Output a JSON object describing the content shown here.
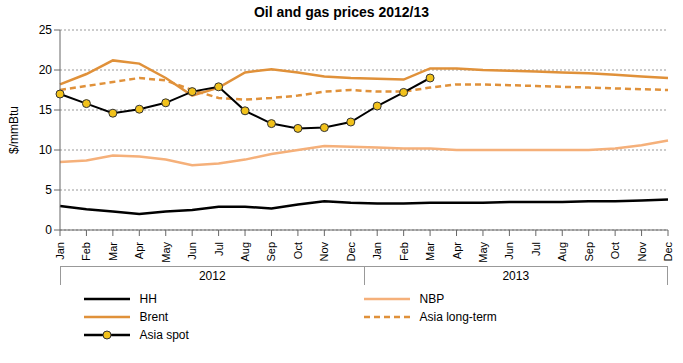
{
  "chart_data": {
    "type": "line",
    "title": "Oil and gas prices 2012/13",
    "y_label": "$/mmBtu",
    "categories": [
      "Jan",
      "Feb",
      "Mar",
      "Apr",
      "May",
      "Jun",
      "Jul",
      "Aug",
      "Sep",
      "Oct",
      "Nov",
      "Dec",
      "Jan",
      "Feb",
      "Mar",
      "Apr",
      "May",
      "Jun",
      "Jul",
      "Aug",
      "Sep",
      "Oct",
      "Nov",
      "Dec"
    ],
    "category_groups": [
      "2012",
      "2013"
    ],
    "ylim": [
      0,
      25
    ],
    "yticks": [
      0,
      5,
      10,
      15,
      20,
      25
    ],
    "grid": true,
    "legend": "bottom",
    "series": [
      {
        "name": "HH",
        "color": "#000000",
        "line_style": "solid",
        "values": [
          3.0,
          2.6,
          2.3,
          2.0,
          2.3,
          2.5,
          2.9,
          2.9,
          2.7,
          3.2,
          3.6,
          3.4,
          3.3,
          3.3,
          3.4,
          3.4,
          3.4,
          3.5,
          3.5,
          3.5,
          3.6,
          3.6,
          3.7,
          3.8
        ]
      },
      {
        "name": "NBP",
        "color": "#f5b07a",
        "line_style": "solid",
        "values": [
          8.5,
          8.7,
          9.3,
          9.2,
          8.8,
          8.1,
          8.3,
          8.8,
          9.5,
          10.0,
          10.5,
          10.4,
          10.3,
          10.2,
          10.2,
          10.0,
          10.0,
          10.0,
          10.0,
          10.0,
          10.0,
          10.2,
          10.6,
          11.2
        ]
      },
      {
        "name": "Brent",
        "color": "#e0913a",
        "line_style": "solid",
        "values": [
          18.2,
          19.5,
          21.2,
          20.8,
          19.0,
          16.8,
          17.8,
          19.7,
          20.1,
          19.7,
          19.2,
          19.0,
          18.9,
          18.8,
          20.2,
          20.2,
          20.0,
          19.9,
          19.8,
          19.7,
          19.6,
          19.4,
          19.2,
          19.0
        ]
      },
      {
        "name": "Asia long-term",
        "color": "#e0913a",
        "line_style": "dashed",
        "values": [
          17.5,
          18.0,
          18.5,
          19.0,
          18.7,
          17.5,
          16.5,
          16.3,
          16.5,
          16.8,
          17.3,
          17.5,
          17.3,
          17.3,
          17.8,
          18.2,
          18.2,
          18.1,
          18.0,
          17.9,
          17.8,
          17.7,
          17.6,
          17.5
        ]
      },
      {
        "name": "Asia spot",
        "color": "#000000",
        "line_style": "solid",
        "marker": "circle",
        "values": [
          17.0,
          15.8,
          14.6,
          15.1,
          15.9,
          17.3,
          17.9,
          14.9,
          13.3,
          12.7,
          12.8,
          13.5,
          15.5,
          17.2,
          19.0,
          null,
          null,
          null,
          null,
          null,
          null,
          null,
          null,
          null
        ]
      }
    ]
  }
}
